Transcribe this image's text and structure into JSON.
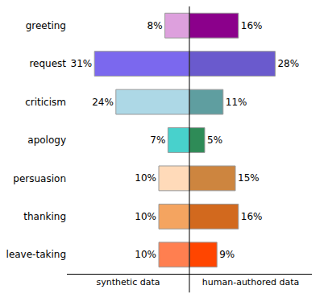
{
  "chart_data": {
    "type": "bar",
    "orientation": "horizontal",
    "data_labels": true,
    "tick_labels": "y",
    "categories": [
      "greeting",
      "request",
      "criticism",
      "apology",
      "persuasion",
      "thanking",
      "leave-taking"
    ],
    "xlim": [
      0,
      40
    ],
    "series": [
      {
        "name": "synthetic data",
        "values": [
          8,
          31,
          24,
          7,
          10,
          10,
          10
        ],
        "value_labels": [
          "8%",
          "31%",
          "24%",
          "7%",
          "10%",
          "10%",
          "10%"
        ],
        "colors": [
          "#dda0dd",
          "#7b68ee",
          "#add8e6",
          "#48d1cc",
          "#ffdab9",
          "#f4a460",
          "#ff7f50"
        ]
      },
      {
        "name": "human-authored data",
        "values": [
          16,
          28,
          11,
          5,
          15,
          16,
          9
        ],
        "value_labels": [
          "16%",
          "28%",
          "11%",
          "5%",
          "15%",
          "16%",
          "9%"
        ],
        "colors": [
          "#8b008b",
          "#6a5acd",
          "#5f9ea0",
          "#2e8b57",
          "#cd853f",
          "#d2691e",
          "#ff4500"
        ]
      }
    ]
  }
}
